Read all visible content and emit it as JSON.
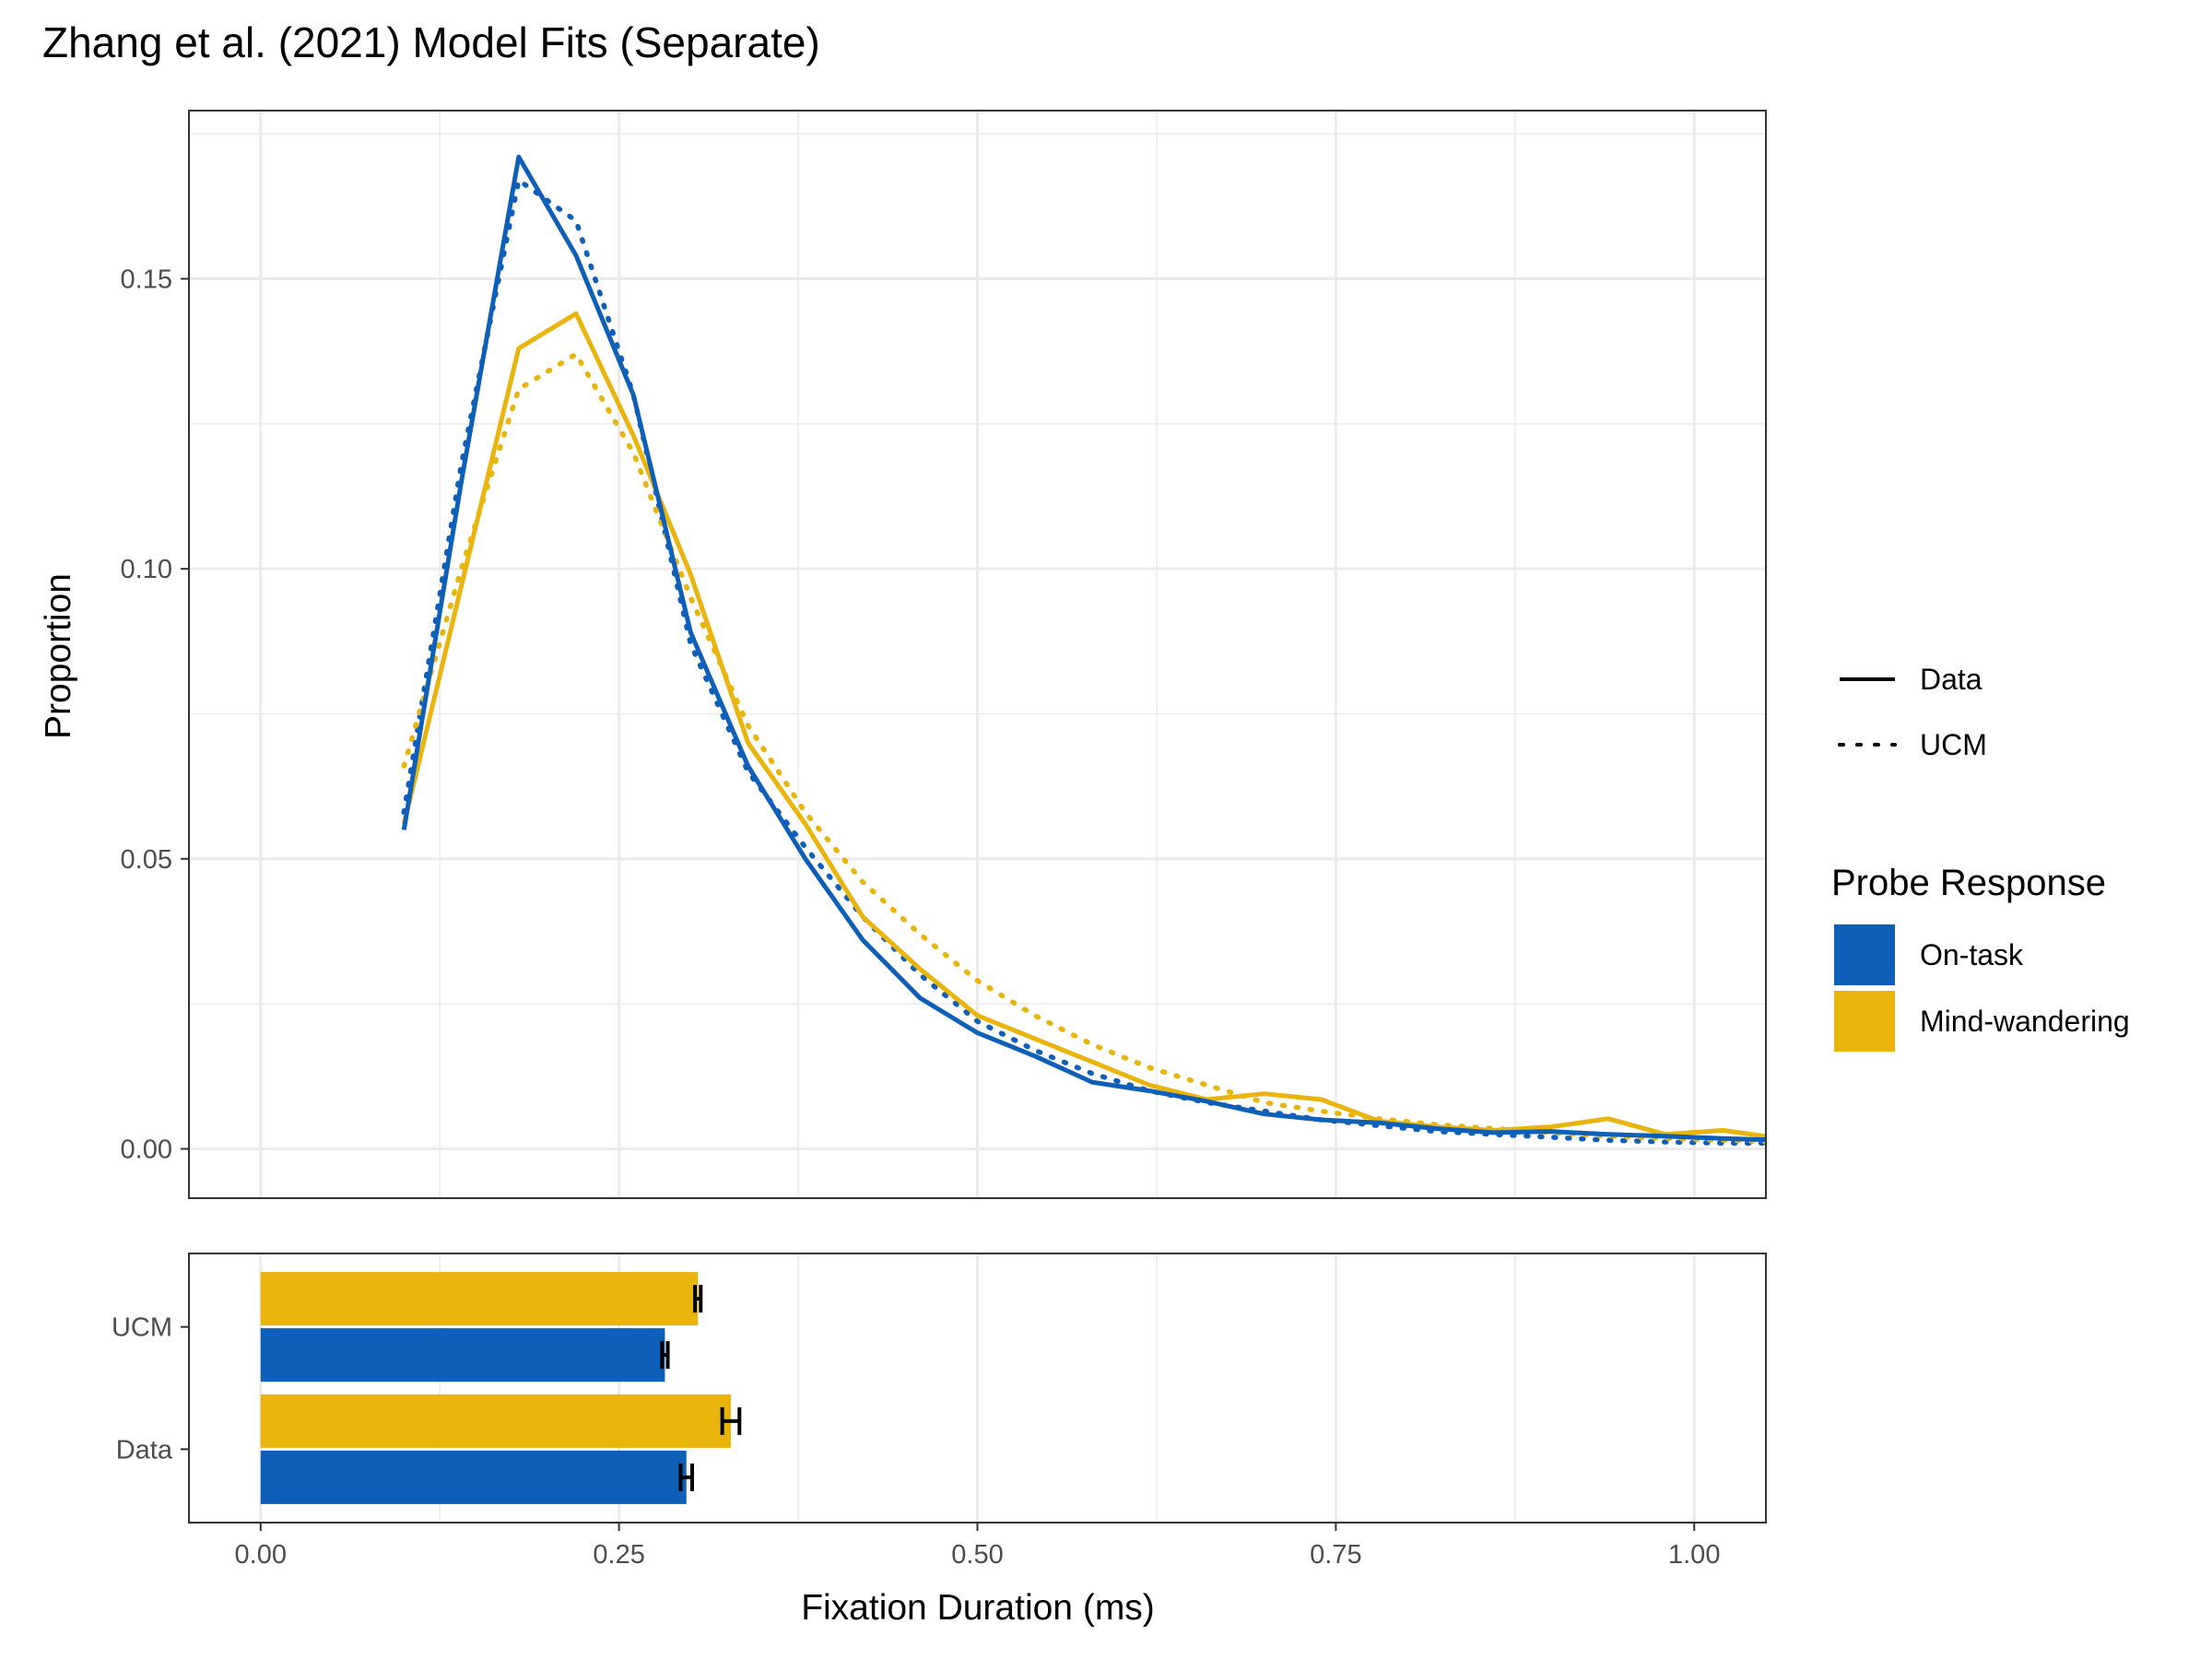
{
  "chart_data": {
    "type": "line",
    "title": "Zhang et al. (2021) Model Fits (Separate)",
    "xlabel": "Fixation Duration (ms)",
    "ylabel": "Proportion",
    "xlim": [
      -0.05,
      1.05
    ],
    "ylim": [
      -0.0085,
      0.179
    ],
    "x_ticks": [
      0.0,
      0.25,
      0.5,
      0.75,
      1.0
    ],
    "x_tick_labels": [
      "0.00",
      "0.25",
      "0.50",
      "0.75",
      "1.00"
    ],
    "y_ticks": [
      0.0,
      0.05,
      0.1,
      0.15
    ],
    "y_tick_labels": [
      "0.00",
      "0.05",
      "0.10",
      "0.15"
    ],
    "grid": true,
    "legend_position": "right",
    "colors": {
      "on_task": "#0d5fb8",
      "mind_wandering": "#e9b40c"
    },
    "linetype_legend": [
      {
        "label": "Data",
        "style": "solid"
      },
      {
        "label": "UCM",
        "style": "dotted"
      }
    ],
    "fill_legend": {
      "title": "Probe Response",
      "items": [
        {
          "label": "On-task",
          "color": "#0d5fb8"
        },
        {
          "label": "Mind-wandering",
          "color": "#e9b40c"
        }
      ]
    },
    "x": [
      0.1,
      0.14,
      0.18,
      0.22,
      0.26,
      0.3,
      0.34,
      0.38,
      0.42,
      0.46,
      0.5,
      0.54,
      0.58,
      0.62,
      0.66,
      0.7,
      0.74,
      0.78,
      0.82,
      0.86,
      0.9,
      0.94,
      0.98,
      1.02,
      1.06
    ],
    "series": [
      {
        "name": "On-task",
        "source": "Data",
        "color": "#0d5fb8",
        "style": "solid",
        "values": [
          0.055,
          0.115,
          0.171,
          0.154,
          0.13,
          0.089,
          0.066,
          0.05,
          0.036,
          0.026,
          0.02,
          0.016,
          0.0115,
          0.01,
          0.0082,
          0.006,
          0.005,
          0.0045,
          0.0035,
          0.0028,
          0.003,
          0.0025,
          0.0022,
          0.0018,
          0.0015
        ]
      },
      {
        "name": "On-task",
        "source": "UCM",
        "color": "#0d5fb8",
        "style": "dotted",
        "values": [
          0.058,
          0.118,
          0.167,
          0.16,
          0.13,
          0.087,
          0.065,
          0.052,
          0.04,
          0.03,
          0.022,
          0.017,
          0.013,
          0.01,
          0.008,
          0.0065,
          0.005,
          0.004,
          0.003,
          0.0025,
          0.002,
          0.0015,
          0.0012,
          0.001,
          0.001
        ]
      },
      {
        "name": "Mind-wandering",
        "source": "Data",
        "color": "#e9b40c",
        "style": "solid",
        "values": [
          0.056,
          0.097,
          0.138,
          0.144,
          0.123,
          0.099,
          0.07,
          0.056,
          0.04,
          0.031,
          0.023,
          0.019,
          0.015,
          0.011,
          0.0085,
          0.0095,
          0.0085,
          0.0048,
          0.0038,
          0.0032,
          0.0038,
          0.0052,
          0.0025,
          0.0032,
          0.0018
        ]
      },
      {
        "name": "Mind-wandering",
        "source": "UCM",
        "color": "#e9b40c",
        "style": "dotted",
        "values": [
          0.066,
          0.1,
          0.131,
          0.137,
          0.12,
          0.095,
          0.073,
          0.058,
          0.046,
          0.037,
          0.029,
          0.023,
          0.018,
          0.014,
          0.011,
          0.008,
          0.0065,
          0.0052,
          0.0042,
          0.0035,
          0.0028,
          0.0022,
          0.0018,
          0.0015,
          0.0012
        ]
      }
    ],
    "bar_panel": {
      "type": "bar",
      "orientation": "horizontal",
      "categories": [
        "UCM",
        "Data"
      ],
      "xlim": [
        -0.05,
        1.05
      ],
      "series": [
        {
          "name": "Mind-wandering",
          "color": "#e9b40c",
          "values": [
            0.305,
            0.328
          ],
          "error": [
            0.002,
            0.006
          ]
        },
        {
          "name": "On-task",
          "color": "#0d5fb8",
          "values": [
            0.282,
            0.297
          ],
          "error": [
            0.002,
            0.004
          ]
        }
      ]
    }
  }
}
